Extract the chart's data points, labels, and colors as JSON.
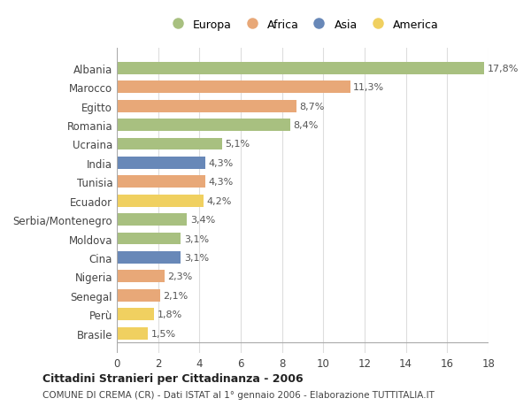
{
  "categories": [
    "Albania",
    "Marocco",
    "Egitto",
    "Romania",
    "Ucraina",
    "India",
    "Tunisia",
    "Ecuador",
    "Serbia/Montenegro",
    "Moldova",
    "Cina",
    "Nigeria",
    "Senegal",
    "Perù",
    "Brasile"
  ],
  "values": [
    17.8,
    11.3,
    8.7,
    8.4,
    5.1,
    4.3,
    4.3,
    4.2,
    3.4,
    3.1,
    3.1,
    2.3,
    2.1,
    1.8,
    1.5
  ],
  "labels": [
    "17,8%",
    "11,3%",
    "8,7%",
    "8,4%",
    "5,1%",
    "4,3%",
    "4,3%",
    "4,2%",
    "3,4%",
    "3,1%",
    "3,1%",
    "2,3%",
    "2,1%",
    "1,8%",
    "1,5%"
  ],
  "continents": [
    "Europa",
    "Africa",
    "Africa",
    "Europa",
    "Europa",
    "Asia",
    "Africa",
    "America",
    "Europa",
    "Europa",
    "Asia",
    "Africa",
    "Africa",
    "America",
    "America"
  ],
  "colors": {
    "Europa": "#a8c080",
    "Africa": "#e8a878",
    "Asia": "#6888b8",
    "America": "#f0d060"
  },
  "xlim": [
    0,
    18
  ],
  "xticks": [
    0,
    2,
    4,
    6,
    8,
    10,
    12,
    14,
    16,
    18
  ],
  "title": "Cittadini Stranieri per Cittadinanza - 2006",
  "subtitle": "COMUNE DI CREMA (CR) - Dati ISTAT al 1° gennaio 2006 - Elaborazione TUTTITALIA.IT",
  "background_color": "#ffffff",
  "grid_color": "#dddddd",
  "bar_height": 0.65,
  "legend_order": [
    "Europa",
    "Africa",
    "Asia",
    "America"
  ]
}
